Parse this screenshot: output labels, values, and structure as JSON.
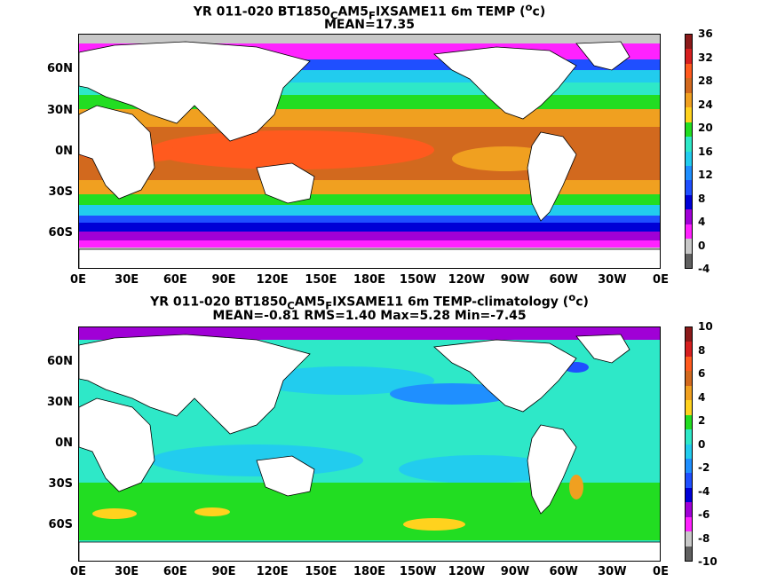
{
  "panel1": {
    "title_prefix": "YR 011-020 BT1850",
    "title_sub1": "C",
    "title_mid": "AM5",
    "title_sub2": "F",
    "title_suffix": "IXSAME11 6m TEMP (",
    "title_sup": "o",
    "title_end": "c)",
    "stats": "MEAN=17.35",
    "colorbar_labels": [
      "36",
      "32",
      "28",
      "24",
      "20",
      "16",
      "12",
      "8",
      "4",
      "0",
      "-4"
    ],
    "colors": [
      "#8b1a1a",
      "#d61f1f",
      "#ff5a1e",
      "#d2691e",
      "#f0a020",
      "#ffd21e",
      "#22dd22",
      "#2ee8c8",
      "#22ccee",
      "#1f8fff",
      "#1f4fff",
      "#0000d6",
      "#a000d6",
      "#ff22ff",
      "#c8c8c8",
      "#606060"
    ]
  },
  "panel2": {
    "title_prefix": "YR 011-020 BT1850",
    "title_sub1": "C",
    "title_mid": "AM5",
    "title_sub2": "F",
    "title_suffix": "IXSAME11 6m TEMP-climatology (",
    "title_sup": "o",
    "title_end": "c)",
    "stats": "MEAN=-0.81   RMS=1.40   Max=5.28   Min=-7.45",
    "colorbar_labels": [
      "10",
      "8",
      "6",
      "4",
      "2",
      "0",
      "-2",
      "-4",
      "-6",
      "-8",
      "-10"
    ],
    "colors": [
      "#8b1a1a",
      "#d61f1f",
      "#ff5a1e",
      "#d2691e",
      "#f0a020",
      "#ffd21e",
      "#22dd22",
      "#2ee8c8",
      "#22ccee",
      "#1f8fff",
      "#1f4fff",
      "#0000d6",
      "#a000d6",
      "#ff22ff",
      "#c8c8c8",
      "#606060"
    ]
  },
  "axes": {
    "lat_labels": [
      "60N",
      "30N",
      "0N",
      "30S",
      "60S"
    ],
    "lon_labels": [
      "0E",
      "30E",
      "60E",
      "90E",
      "120E",
      "150E",
      "180E",
      "150W",
      "120W",
      "90W",
      "60W",
      "30W",
      "0E"
    ]
  }
}
